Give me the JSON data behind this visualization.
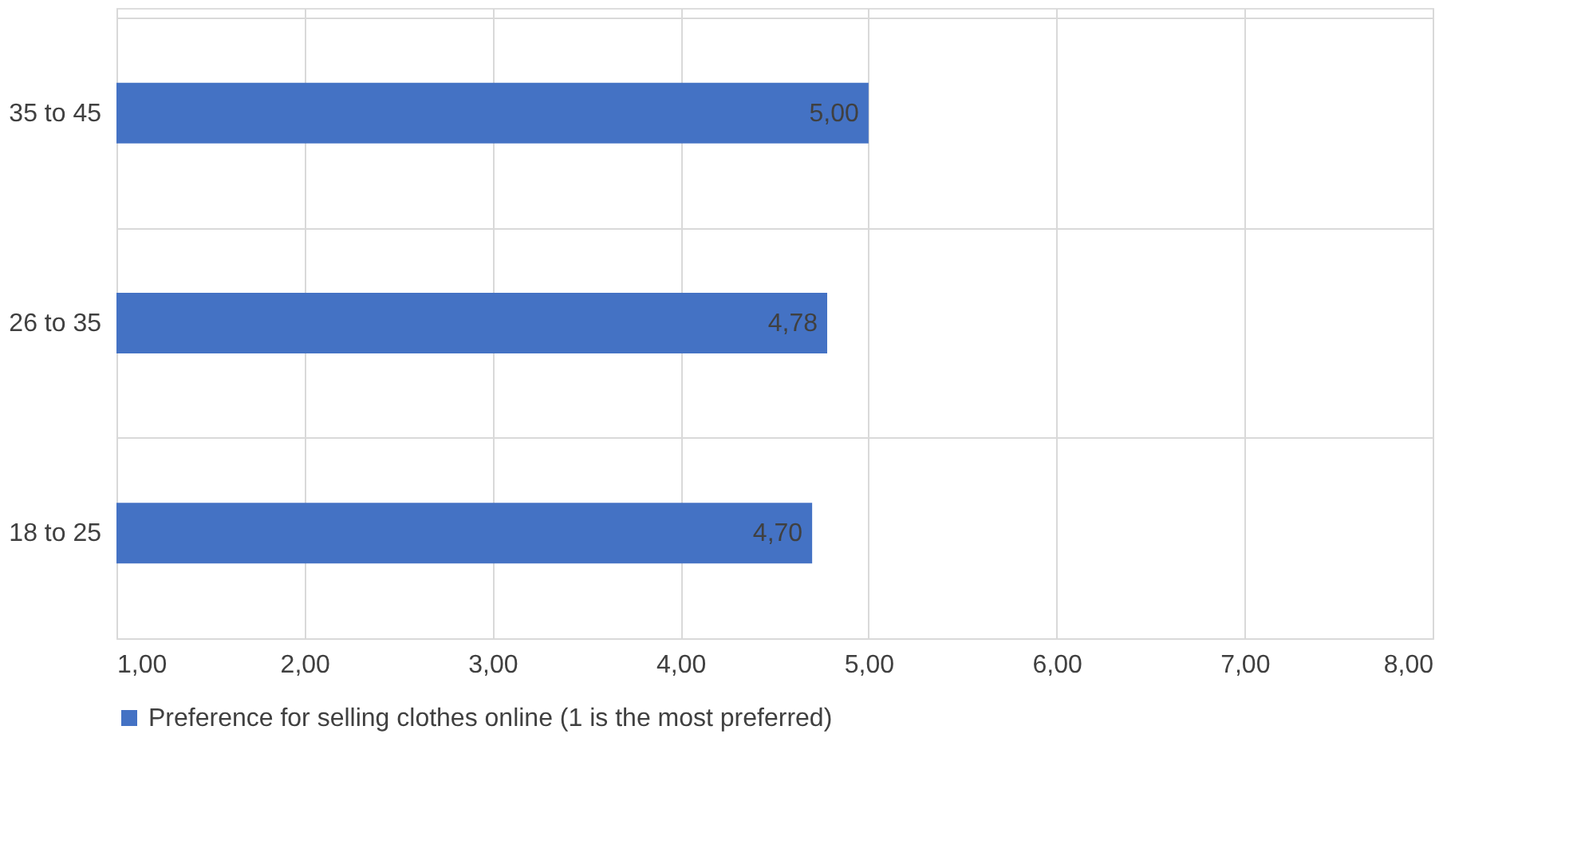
{
  "chart_data": {
    "type": "bar",
    "orientation": "horizontal",
    "categories": [
      "35 to 45",
      "26 to 35",
      "18 to 25"
    ],
    "series": [
      {
        "name": "Preference for selling clothes online (1 is the most preferred)",
        "color": "#4472c4",
        "values": [
          5.0,
          4.78,
          4.7
        ],
        "value_labels": [
          "5,00",
          "4,78",
          "4,70"
        ]
      }
    ],
    "xlim": [
      1,
      8
    ],
    "xticks": [
      {
        "value": 1,
        "label": "1,00"
      },
      {
        "value": 2,
        "label": "2,00"
      },
      {
        "value": 3,
        "label": "3,00"
      },
      {
        "value": 4,
        "label": "4,00"
      },
      {
        "value": 5,
        "label": "5,00"
      },
      {
        "value": 6,
        "label": "6,00"
      },
      {
        "value": 7,
        "label": "7,00"
      },
      {
        "value": 8,
        "label": "8,00"
      }
    ],
    "grid": true,
    "legend": "bottom"
  }
}
